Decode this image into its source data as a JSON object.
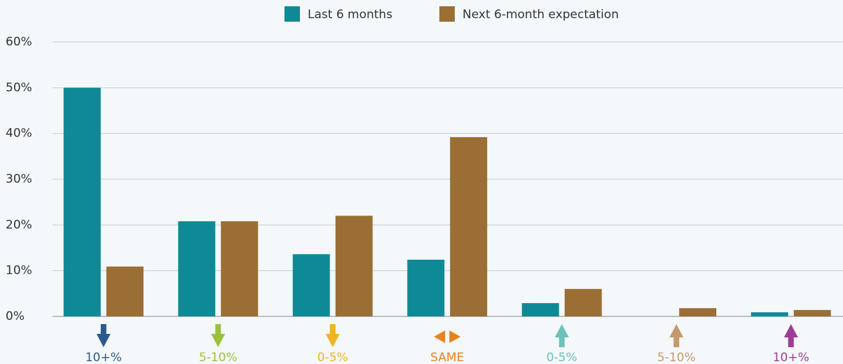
{
  "chart_data": {
    "type": "bar",
    "categories": [
      "10+%",
      "5-10%",
      "0-5%",
      "SAME",
      "0-5%",
      "5-10%",
      "10+%"
    ],
    "category_colors": [
      "#2d5a8e",
      "#9bc13c",
      "#f0b323",
      "#e8821e",
      "#6cc2b8",
      "#c49a6c",
      "#9b3e97"
    ],
    "series": [
      {
        "name": "Last 6 months",
        "color": "#0e8a96",
        "values": [
          50,
          20.8,
          13.6,
          12.4,
          2.9,
          0,
          0.9
        ]
      },
      {
        "name": "Next 6-month expectation",
        "color": "#9a6e34",
        "values": [
          10.9,
          20.8,
          22,
          39.2,
          6,
          1.8,
          1.4
        ]
      }
    ],
    "ylim": [
      0,
      60
    ],
    "yticks": [
      {
        "value": 0,
        "label": "0%"
      },
      {
        "value": 10,
        "label": "10%"
      },
      {
        "value": 20,
        "label": "20%"
      },
      {
        "value": 30,
        "label": "30%"
      },
      {
        "value": 40,
        "label": "40%"
      },
      {
        "value": 50,
        "label": "50%"
      },
      {
        "value": 60,
        "label": "60%"
      }
    ],
    "grid": true,
    "legend": "top"
  }
}
